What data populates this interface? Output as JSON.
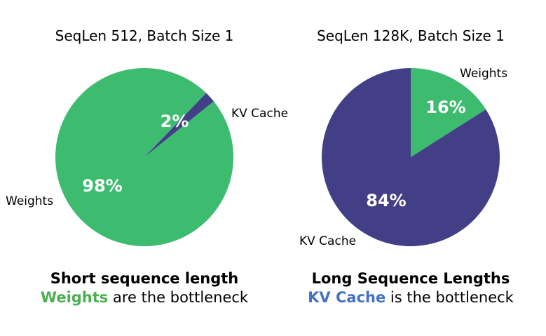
{
  "chart_data": [
    {
      "type": "pie",
      "title": "SeqLen 512, Batch Size 1",
      "slices": [
        {
          "name": "Weights",
          "value": 98,
          "label": "98%",
          "color": "#3dbc70"
        },
        {
          "name": "KV Cache",
          "value": 2,
          "label": "2%",
          "color": "#423f86"
        }
      ],
      "caption": {
        "heading": "Short sequence length",
        "highlight": "Weights",
        "highlight_color": "#4caf50",
        "rest": " are the bottleneck"
      }
    },
    {
      "type": "pie",
      "title": "SeqLen 128K, Batch Size 1",
      "slices": [
        {
          "name": "Weights",
          "value": 16,
          "label": "16%",
          "color": "#3dbc70"
        },
        {
          "name": "KV Cache",
          "value": 84,
          "label": "84%",
          "color": "#423f86"
        }
      ],
      "caption": {
        "heading": "Long Sequence Lengths",
        "highlight": "KV Cache",
        "highlight_color": "#4472c4",
        "rest": " is the bottleneck"
      }
    }
  ]
}
